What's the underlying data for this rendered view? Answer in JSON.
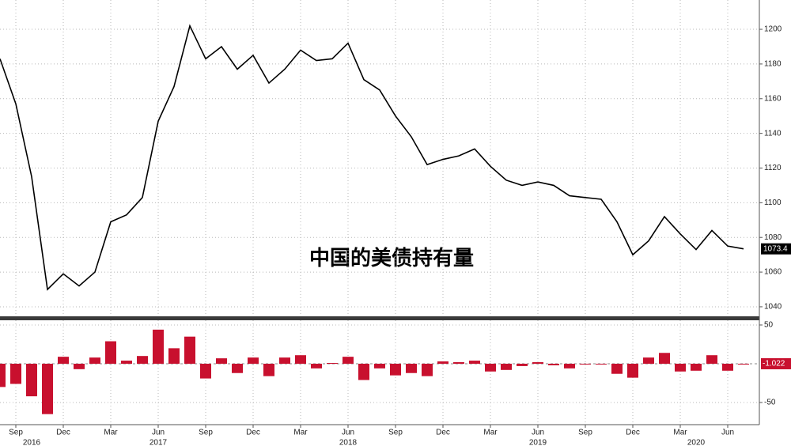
{
  "chart_data": [
    {
      "type": "line",
      "title": "中国的美债持有量",
      "color": "#000000",
      "values": [
        1183,
        1157,
        1115,
        1050,
        1059,
        1052,
        1060,
        1089,
        1093,
        1103,
        1147,
        1167,
        1202,
        1183,
        1190,
        1177,
        1185,
        1169,
        1177,
        1188,
        1182,
        1183,
        1192,
        1171,
        1165,
        1150,
        1138,
        1122,
        1125,
        1127,
        1131,
        1121,
        1113,
        1110,
        1112,
        1110,
        1104,
        1103,
        1102,
        1089,
        1070,
        1078,
        1092,
        1082,
        1073,
        1084,
        1075,
        1073.4
      ],
      "ylim": [
        1034.5,
        1216.9
      ],
      "yticks": [
        1040,
        1060,
        1080,
        1100,
        1120,
        1140,
        1160,
        1180,
        1200
      ],
      "grid": true
    },
    {
      "type": "bar",
      "color": "#c8102e",
      "categories": [
        null,
        "Sep",
        null,
        null,
        "Dec",
        null,
        null,
        "Mar",
        null,
        null,
        "Jun",
        null,
        null,
        "Sep",
        null,
        null,
        "Dec",
        null,
        null,
        "Mar",
        null,
        null,
        "Jun",
        null,
        null,
        "Sep",
        null,
        null,
        "Dec",
        null,
        null,
        "Mar",
        null,
        null,
        "Jun",
        null,
        null,
        "Sep",
        null,
        null,
        "Dec",
        null,
        null,
        "Mar",
        null,
        null,
        "Jun",
        null
      ],
      "year_categories": [
        null,
        null,
        "2016",
        null,
        null,
        null,
        null,
        null,
        null,
        null,
        "2017",
        null,
        null,
        null,
        null,
        null,
        null,
        null,
        null,
        null,
        null,
        null,
        "2018",
        null,
        null,
        null,
        null,
        null,
        null,
        null,
        null,
        null,
        null,
        null,
        "2019",
        null,
        null,
        null,
        null,
        null,
        null,
        null,
        null,
        null,
        "2020",
        null,
        null,
        null
      ],
      "values": [
        -30,
        -26,
        -42,
        -65,
        9,
        -7,
        8,
        29,
        4,
        10,
        44,
        20,
        35,
        -19,
        7,
        -12,
        8,
        -16,
        8,
        11,
        -6,
        1,
        9,
        -21,
        -6,
        -15,
        -12,
        -16,
        3,
        2,
        4,
        -10,
        -8,
        -3,
        2,
        -2,
        -6,
        -1,
        -1,
        -13,
        -18,
        8,
        14,
        -10,
        -9,
        11,
        -9,
        -1.022
      ],
      "ylim": [
        -78.6,
        56.1
      ],
      "yticks": [
        -50,
        50
      ],
      "grid": true
    }
  ]
}
